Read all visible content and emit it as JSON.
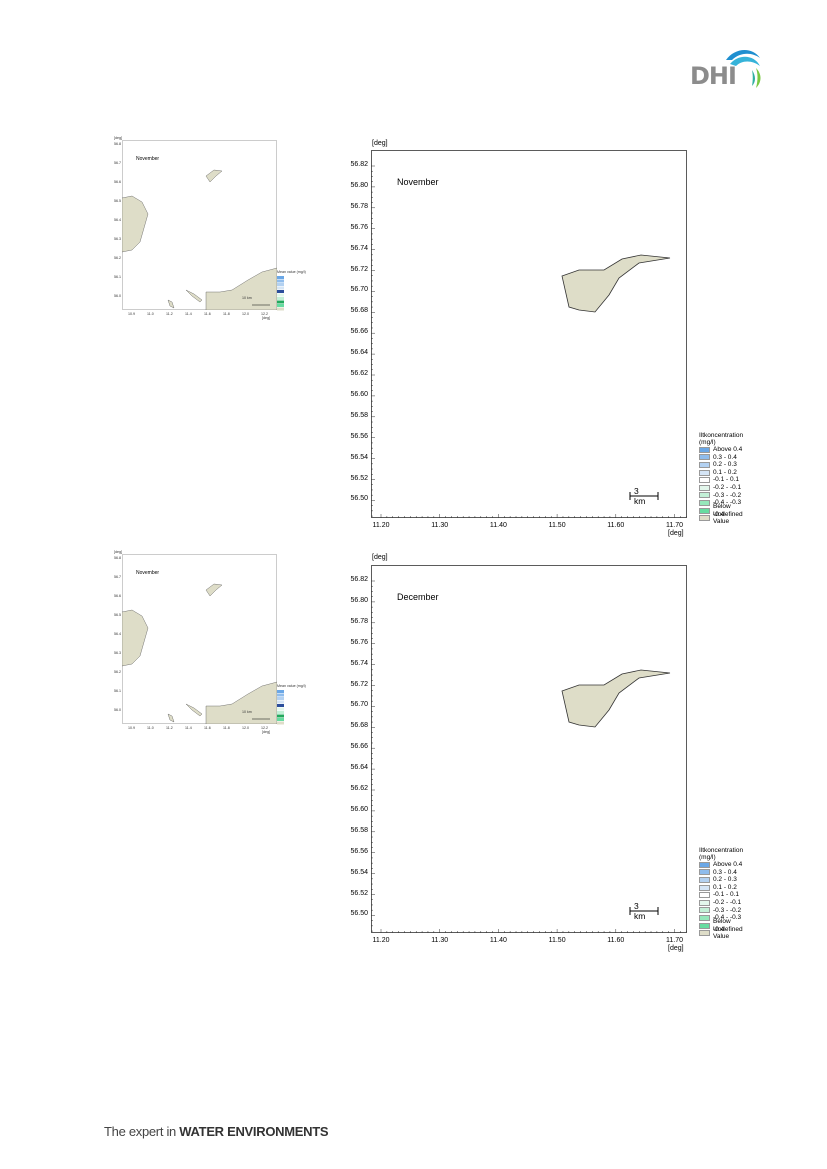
{
  "header": {
    "logo_text": "DHI"
  },
  "footer": {
    "prefix": "The expert in ",
    "emphasis": "WATER ENVIRONMENTS"
  },
  "maps": [
    {
      "month": "November",
      "y_unit": "[deg]",
      "x_unit": "[deg]",
      "y_ticks": [
        "56.82",
        "56.80",
        "56.78",
        "56.76",
        "56.74",
        "56.72",
        "56.70",
        "56.68",
        "56.66",
        "56.64",
        "56.62",
        "56.60",
        "56.58",
        "56.56",
        "56.54",
        "56.52",
        "56.50"
      ],
      "x_ticks": [
        "11.20",
        "11.30",
        "11.40",
        "11.50",
        "11.60",
        "11.70"
      ],
      "scale_bar": "3 km",
      "legend": {
        "title": "Iltkoncentration (mg/l)",
        "items": [
          {
            "label": "Above  0.4",
            "color": "#6aa7e6"
          },
          {
            "label": "0.3 -  0.4",
            "color": "#8fbcec"
          },
          {
            "label": "0.2 -  0.3",
            "color": "#b3d1f1"
          },
          {
            "label": "0.1 -  0.2",
            "color": "#d5e5f6"
          },
          {
            "label": "-0.1 -  0.1",
            "color": "#ffffff"
          },
          {
            "label": "-0.2 - -0.1",
            "color": "#e3f7ec"
          },
          {
            "label": "-0.3 - -0.2",
            "color": "#c3f0d7"
          },
          {
            "label": "-0.4 - -0.3",
            "color": "#96e7bb"
          },
          {
            "label": "Below -0.4",
            "color": "#66dca0"
          },
          {
            "label": "Undefined Value",
            "color": "#deddc8"
          }
        ]
      },
      "thumb": {
        "unit": "[deg]",
        "month": "November",
        "y_ticks": [
          "56.8",
          "56.7",
          "56.6",
          "56.5",
          "56.4",
          "56.3",
          "56.2",
          "56.1",
          "56.0"
        ],
        "x_ticks": [
          "10.9",
          "11.0",
          "11.2",
          "11.4",
          "11.6",
          "11.8",
          "12.0",
          "12.2"
        ],
        "legend_title": "Mean value (mg/l)",
        "scale": "10 km"
      }
    },
    {
      "month": "December",
      "y_unit": "[deg]",
      "x_unit": "[deg]",
      "y_ticks": [
        "56.82",
        "56.80",
        "56.78",
        "56.76",
        "56.74",
        "56.72",
        "56.70",
        "56.68",
        "56.66",
        "56.64",
        "56.62",
        "56.60",
        "56.58",
        "56.56",
        "56.54",
        "56.52",
        "56.50"
      ],
      "x_ticks": [
        "11.20",
        "11.30",
        "11.40",
        "11.50",
        "11.60",
        "11.70"
      ],
      "scale_bar": "3 km",
      "legend": {
        "title": "Iltkoncentration (mg/l)",
        "items": [
          {
            "label": "Above  0.4",
            "color": "#6aa7e6"
          },
          {
            "label": "0.3 -  0.4",
            "color": "#8fbcec"
          },
          {
            "label": "0.2 -  0.3",
            "color": "#b3d1f1"
          },
          {
            "label": "0.1 -  0.2",
            "color": "#d5e5f6"
          },
          {
            "label": "-0.1 -  0.1",
            "color": "#ffffff"
          },
          {
            "label": "-0.2 - -0.1",
            "color": "#e3f7ec"
          },
          {
            "label": "-0.3 - -0.2",
            "color": "#c3f0d7"
          },
          {
            "label": "-0.4 - -0.3",
            "color": "#96e7bb"
          },
          {
            "label": "Below -0.4",
            "color": "#66dca0"
          },
          {
            "label": "Undefined Value",
            "color": "#deddc8"
          }
        ]
      },
      "thumb": {
        "unit": "[deg]",
        "month": "November",
        "y_ticks": [
          "56.8",
          "56.7",
          "56.6",
          "56.5",
          "56.4",
          "56.3",
          "56.2",
          "56.1",
          "56.0"
        ],
        "x_ticks": [
          "10.9",
          "11.0",
          "11.2",
          "11.4",
          "11.6",
          "11.8",
          "12.0",
          "12.2"
        ],
        "legend_title": "Mean value (mg/l)",
        "scale": "10 km"
      }
    }
  ]
}
